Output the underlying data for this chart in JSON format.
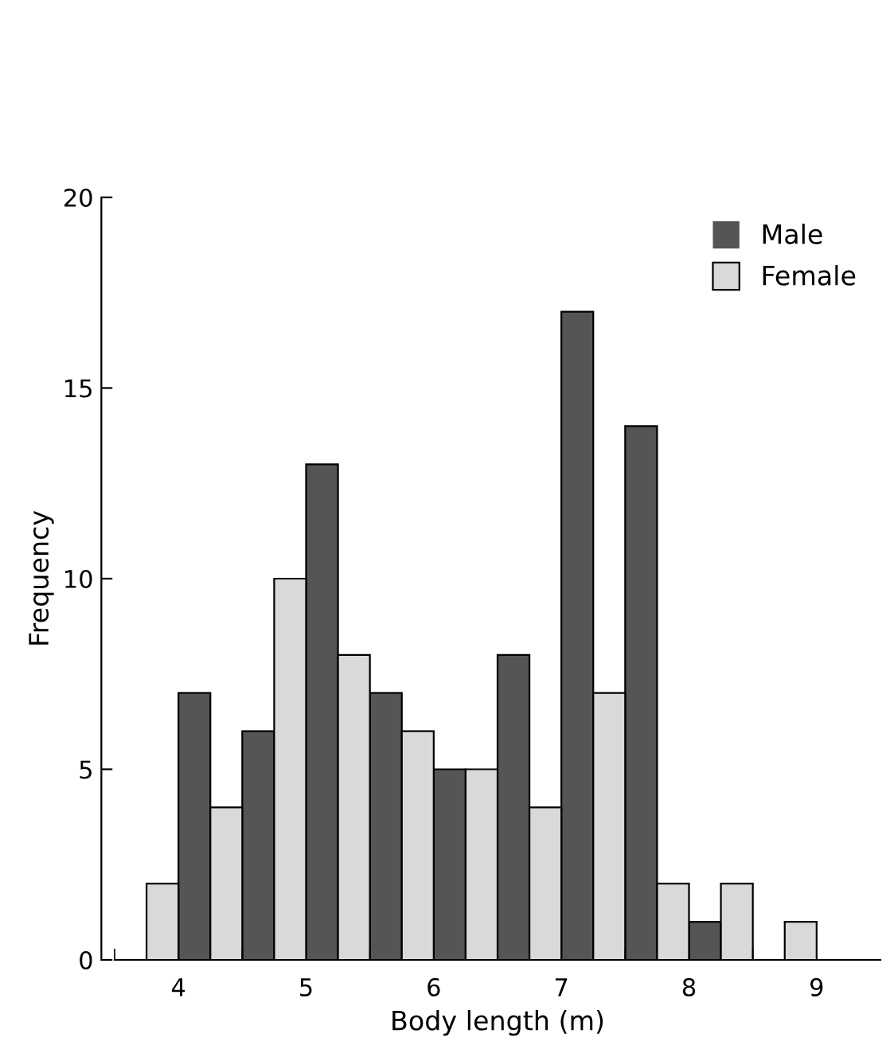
{
  "chart_data": {
    "type": "histogram",
    "xlabel": "Body length (m)",
    "ylabel": "Frequency",
    "bins": [
      3.5,
      4.0,
      4.5,
      5.0,
      5.5,
      6.0,
      6.5,
      7.0,
      7.5,
      8.0,
      8.5,
      9.0
    ],
    "series": [
      {
        "name": "Male",
        "color": "#555555",
        "values": [
          0,
          7,
          6,
          13,
          7,
          5,
          8,
          17,
          14,
          1,
          0
        ]
      },
      {
        "name": "Female",
        "color": "#d9d9d9",
        "values": [
          2,
          4,
          10,
          8,
          6,
          5,
          4,
          7,
          2,
          2,
          1
        ]
      }
    ],
    "xlim": [
      3.5,
      9.5
    ],
    "xticks": [
      {
        "value": 3.5,
        "label": null
      },
      {
        "value": 4,
        "label": "4"
      },
      {
        "value": 4.5,
        "label": null
      },
      {
        "value": 5,
        "label": "5"
      },
      {
        "value": 5.5,
        "label": null
      },
      {
        "value": 6,
        "label": "6"
      },
      {
        "value": 6.5,
        "label": null
      },
      {
        "value": 7,
        "label": "7"
      },
      {
        "value": 7.5,
        "label": null
      },
      {
        "value": 8,
        "label": "8"
      },
      {
        "value": 8.5,
        "label": null
      },
      {
        "value": 9,
        "label": "9"
      }
    ],
    "ylim": [
      0,
      20
    ],
    "yticks": [
      0,
      5,
      10,
      15,
      20
    ],
    "legend": "top right",
    "grid": false
  }
}
